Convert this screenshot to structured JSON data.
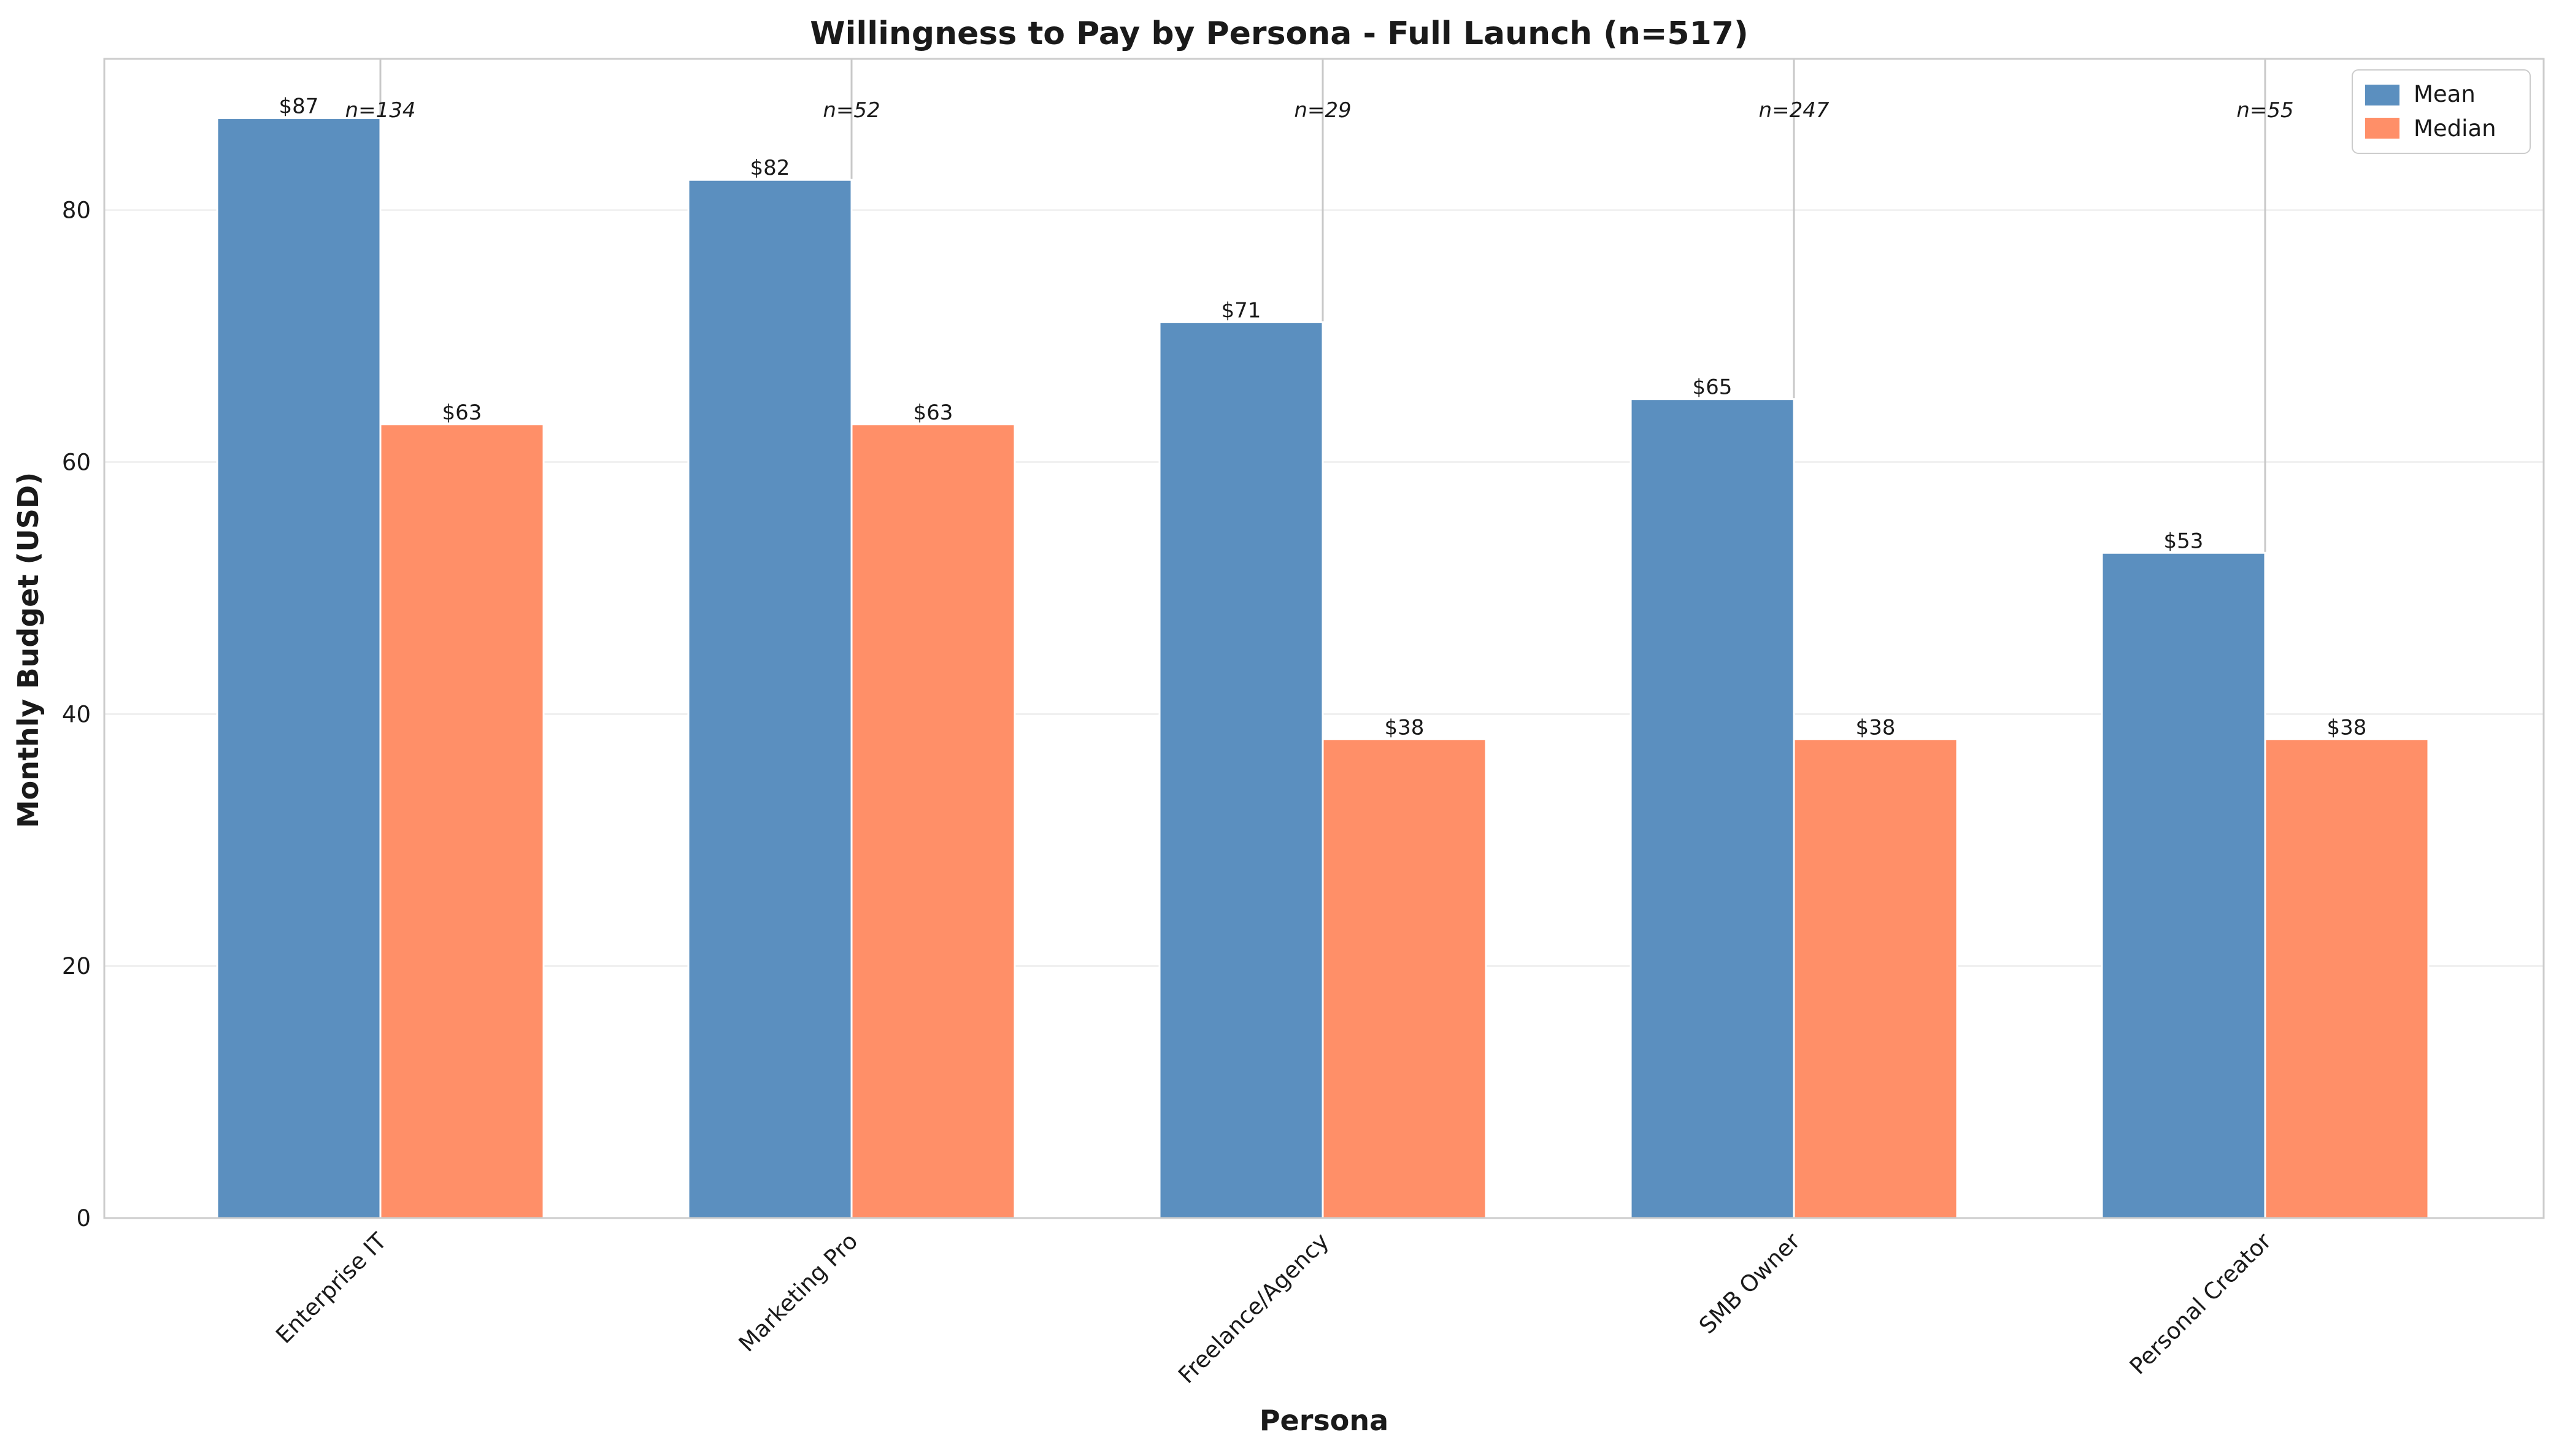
{
  "chart_data": {
    "type": "bar",
    "title": "Willingness to Pay by Persona - Full Launch (n=517)",
    "xlabel": "Persona",
    "ylabel": "Monthly Budget (USD)",
    "categories": [
      "Enterprise IT",
      "Marketing Pro",
      "Freelance/Agency",
      "SMB Owner",
      "Personal Creator"
    ],
    "series": [
      {
        "name": "Mean",
        "color": "#5b8fbf",
        "values": [
          87.3,
          82.4,
          71.1,
          65.0,
          52.8
        ],
        "labels": [
          "$87",
          "$82",
          "$71",
          "$65",
          "$53"
        ]
      },
      {
        "name": "Median",
        "color": "#ff8f68",
        "values": [
          63,
          63,
          38,
          38,
          38
        ],
        "labels": [
          "$63",
          "$63",
          "$38",
          "$38",
          "$38"
        ]
      }
    ],
    "sample_sizes": [
      "n=134",
      "n=52",
      "n=29",
      "n=247",
      "n=55"
    ],
    "ylim": [
      0,
      92
    ],
    "yticks": [
      0,
      20,
      40,
      60,
      80
    ],
    "grid": true,
    "legend_position": "top-right"
  }
}
